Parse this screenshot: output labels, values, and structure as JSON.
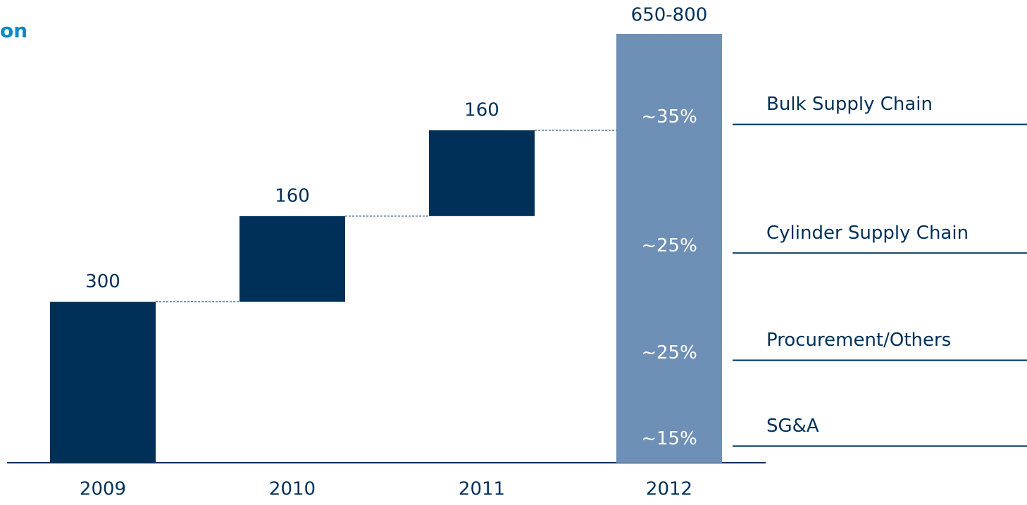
{
  "chart_data": {
    "type": "waterfall",
    "title": "on",
    "categories": [
      "2009",
      "2010",
      "2011",
      "2012"
    ],
    "values": [
      300,
      160,
      160,
      null
    ],
    "total": [
      650,
      800
    ],
    "total_label": "650-800",
    "ylim": [
      0,
      800
    ],
    "color": "#003057",
    "total_color": "#6e8fb6",
    "breakdown": {
      "names": [
        "SG&A",
        "Procurement/Others",
        "Cylinder Supply Chain",
        "Bulk Supply Chain"
      ],
      "values": [
        15,
        25,
        25,
        35
      ],
      "value_labels": [
        "~15%",
        "~25%",
        "~25%",
        "~35%"
      ]
    }
  }
}
